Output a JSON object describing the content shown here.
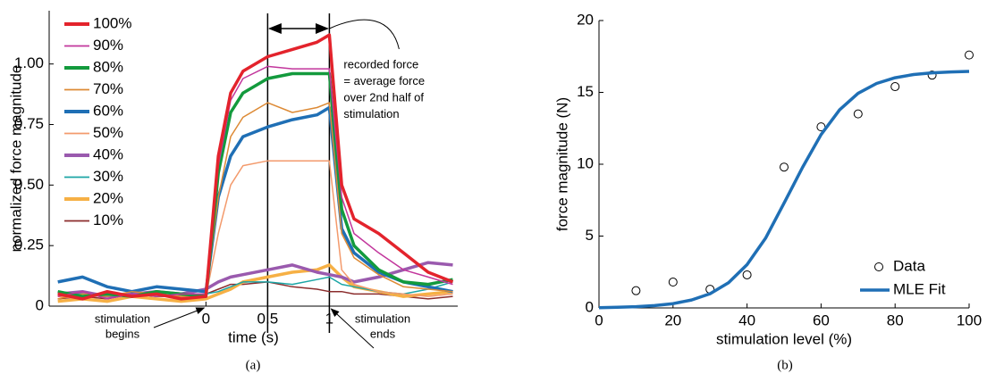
{
  "chart_data": [
    {
      "type": "line",
      "xlabel": "time (s)",
      "ylabel": "normalized force magnitude",
      "caption": "(a)",
      "note": [
        "recorded force",
        "= average force",
        "over 2nd half of",
        "stimulation"
      ],
      "start_note": [
        "stimulation",
        "begins"
      ],
      "end_note": [
        "stimulation",
        "ends"
      ],
      "x": [
        -1.2,
        -1.0,
        -0.8,
        -0.6,
        -0.4,
        -0.2,
        0,
        0.1,
        0.2,
        0.3,
        0.5,
        0.7,
        0.9,
        1.0,
        1.1,
        1.2,
        1.4,
        1.6,
        1.8,
        2.0
      ],
      "xlim": [
        -1.27,
        2.04
      ],
      "xticks": [
        0,
        0.5,
        1
      ],
      "ylim": [
        0,
        1.22
      ],
      "yticks": [
        0,
        0.25,
        {
          "value": 0.5,
          "label": "0.50"
        },
        0.75,
        {
          "value": 1,
          "label": "1.00"
        }
      ],
      "legend": "upper left",
      "series": [
        {
          "name": "100%",
          "color": "#e3232c",
          "values": [
            0.05,
            0.03,
            0.06,
            0.04,
            0.05,
            0.03,
            0.04,
            0.62,
            0.88,
            0.97,
            1.03,
            1.06,
            1.09,
            1.12,
            0.5,
            0.36,
            0.3,
            0.22,
            0.14,
            0.1
          ]
        },
        {
          "name": "90%",
          "color": "#c2369c",
          "values": [
            0.04,
            0.06,
            0.03,
            0.05,
            0.04,
            0.05,
            0.05,
            0.58,
            0.85,
            0.94,
            0.99,
            0.98,
            0.98,
            0.98,
            0.45,
            0.3,
            0.22,
            0.15,
            0.12,
            0.09
          ]
        },
        {
          "name": "80%",
          "color": "#139a3d",
          "values": [
            0.06,
            0.04,
            0.05,
            0.04,
            0.06,
            0.05,
            0.04,
            0.55,
            0.8,
            0.88,
            0.94,
            0.96,
            0.96,
            0.96,
            0.4,
            0.25,
            0.15,
            0.1,
            0.09,
            0.11
          ]
        },
        {
          "name": "70%",
          "color": "#dd8a35",
          "values": [
            0.03,
            0.05,
            0.04,
            0.06,
            0.05,
            0.04,
            0.05,
            0.45,
            0.7,
            0.78,
            0.84,
            0.8,
            0.82,
            0.84,
            0.3,
            0.2,
            0.13,
            0.08,
            0.07,
            0.06
          ]
        },
        {
          "name": "60%",
          "color": "#1f6fb5",
          "values": [
            0.1,
            0.12,
            0.08,
            0.06,
            0.08,
            0.07,
            0.06,
            0.45,
            0.62,
            0.7,
            0.74,
            0.77,
            0.79,
            0.82,
            0.32,
            0.22,
            0.14,
            0.1,
            0.08,
            0.06
          ]
        },
        {
          "name": "50%",
          "color": "#f39a6c",
          "values": [
            0.04,
            0.03,
            0.05,
            0.04,
            0.05,
            0.04,
            0.04,
            0.3,
            0.5,
            0.58,
            0.6,
            0.6,
            0.6,
            0.6,
            0.15,
            0.09,
            0.06,
            0.05,
            0.04,
            0.05
          ]
        },
        {
          "name": "40%",
          "color": "#9a5aae",
          "values": [
            0.05,
            0.06,
            0.04,
            0.05,
            0.06,
            0.05,
            0.07,
            0.1,
            0.12,
            0.13,
            0.15,
            0.17,
            0.14,
            0.13,
            0.12,
            0.1,
            0.12,
            0.15,
            0.18,
            0.17
          ]
        },
        {
          "name": "30%",
          "color": "#1ba5a5",
          "values": [
            0.06,
            0.05,
            0.04,
            0.05,
            0.04,
            0.05,
            0.05,
            0.06,
            0.08,
            0.1,
            0.1,
            0.09,
            0.11,
            0.12,
            0.09,
            0.08,
            0.06,
            0.05,
            0.07,
            0.1
          ]
        },
        {
          "name": "20%",
          "color": "#f6b045",
          "values": [
            0.02,
            0.03,
            0.02,
            0.04,
            0.03,
            0.02,
            0.03,
            0.05,
            0.07,
            0.1,
            0.12,
            0.14,
            0.15,
            0.17,
            0.12,
            0.08,
            0.06,
            0.04,
            0.05,
            0.06
          ]
        },
        {
          "name": "10%",
          "color": "#8b2c2c",
          "values": [
            0.03,
            0.04,
            0.03,
            0.05,
            0.04,
            0.04,
            0.05,
            0.07,
            0.09,
            0.09,
            0.1,
            0.08,
            0.07,
            0.06,
            0.06,
            0.05,
            0.05,
            0.04,
            0.03,
            0.04
          ]
        }
      ]
    },
    {
      "type": "scatter",
      "xlabel": "stimulation level (%)",
      "ylabel": "force magnitude (N)",
      "caption": "(b)",
      "xlim": [
        0,
        100
      ],
      "xticks": [
        0,
        20,
        40,
        60,
        80,
        100
      ],
      "ylim": [
        0,
        20
      ],
      "yticks": [
        0,
        5,
        10,
        15,
        20
      ],
      "legend": "lower right",
      "series": [
        {
          "name": "Data",
          "marker": "circle",
          "color": "#000000",
          "x": [
            10,
            20,
            30,
            40,
            50,
            60,
            70,
            80,
            90,
            100
          ],
          "values": [
            1.2,
            1.8,
            1.3,
            2.3,
            9.8,
            12.6,
            13.5,
            15.4,
            16.2,
            17.6
          ]
        },
        {
          "name": "MLE Fit",
          "color": "#1f6fb5",
          "x": [
            0,
            5,
            10,
            15,
            20,
            25,
            30,
            35,
            40,
            45,
            50,
            55,
            60,
            65,
            70,
            75,
            80,
            85,
            90,
            95,
            100
          ],
          "values": [
            0.02,
            0.05,
            0.09,
            0.16,
            0.3,
            0.55,
            0.99,
            1.76,
            3.01,
            4.85,
            7.29,
            9.78,
            12.06,
            13.78,
            14.93,
            15.62,
            16.02,
            16.24,
            16.36,
            16.42,
            16.46
          ]
        }
      ]
    }
  ]
}
